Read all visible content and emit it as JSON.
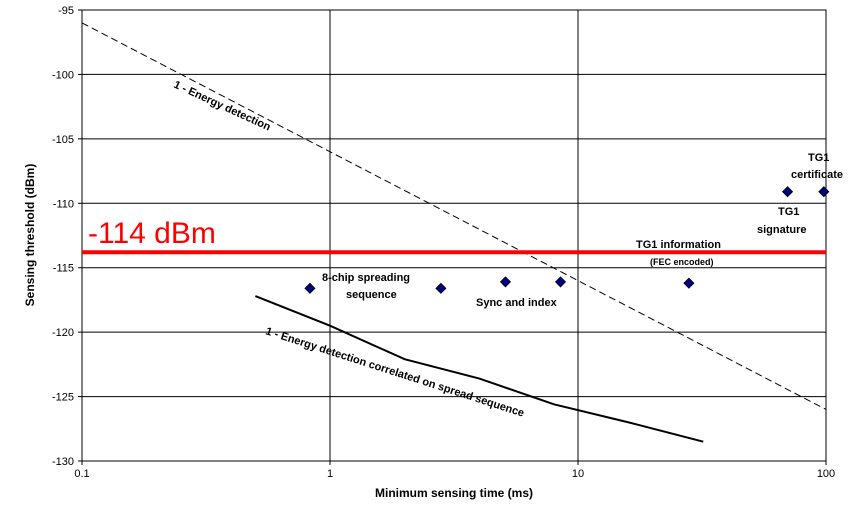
{
  "chart_data": {
    "type": "scatter",
    "xscale": "log",
    "xlim": [
      0.1,
      100
    ],
    "ylim": [
      -130,
      -95
    ],
    "xticks": [
      "0.1",
      "1",
      "10",
      "100"
    ],
    "yticks": [
      "-95",
      "-100",
      "-105",
      "-110",
      "-115",
      "-120",
      "-125",
      "-130"
    ],
    "xlabel": "Minimum sensing time (ms)",
    "ylabel": "Sensing threshold (dBm)",
    "grid": true,
    "series": [
      {
        "style": "dashed-line",
        "color": "#000000",
        "points": [
          [
            0.1,
            -96
          ],
          [
            100,
            -126
          ]
        ]
      },
      {
        "style": "solid-line",
        "color": "#000000",
        "points": [
          [
            0.5,
            -117.2
          ],
          [
            1,
            -119.5
          ],
          [
            2,
            -122.1
          ],
          [
            4,
            -123.6
          ],
          [
            8,
            -125.6
          ],
          [
            16,
            -127.0
          ],
          [
            32,
            -128.5
          ]
        ]
      },
      {
        "style": "solid-line",
        "color": "#ff0000",
        "points": [
          [
            0.1,
            -113.8
          ],
          [
            100,
            -113.8
          ]
        ]
      },
      {
        "style": "diamond-markers",
        "color": "#000080",
        "points": [
          [
            0.83,
            -116.6
          ],
          [
            2.8,
            -116.6
          ],
          [
            5.1,
            -116.1
          ],
          [
            8.5,
            -116.1
          ],
          [
            28,
            -116.2
          ],
          [
            70,
            -109.1
          ],
          [
            98,
            -109.1
          ]
        ]
      }
    ],
    "annotations": {
      "threshold": "-114 dBm",
      "energy_detection": "1 - Energy detection",
      "correlated": "1 - Energy detection correlated on spread sequence",
      "chip_line1": "8-chip spreading",
      "chip_line2": "sequence",
      "sync": "Sync and index",
      "tg1_info": "TG1 information",
      "fec": "(FEC encoded)",
      "sig_line1": "TG1",
      "sig_line2": "signature",
      "cert_line1": "TG1",
      "cert_line2": "certificate"
    }
  }
}
